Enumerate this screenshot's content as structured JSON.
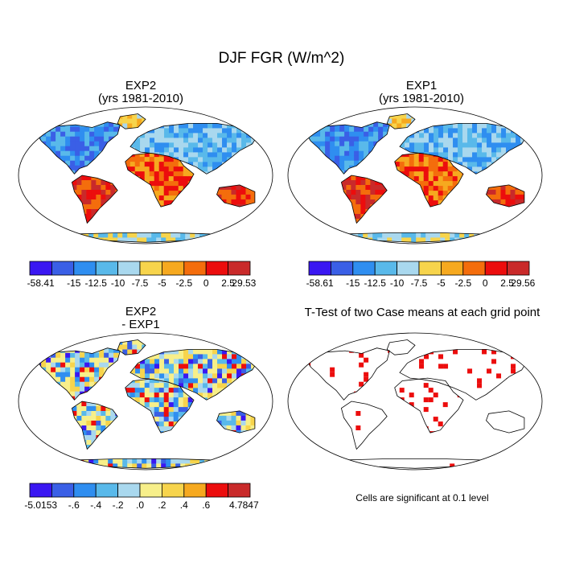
{
  "figure": {
    "title": "DJF FGR (W/m^2)"
  },
  "panels": {
    "exp2": {
      "title_line1": "EXP2",
      "title_line2": "(yrs 1981-2010)",
      "colorbar": {
        "colors": [
          "#3a17f2",
          "#3a5fe6",
          "#2f8ef0",
          "#59b9ea",
          "#a9d8ee",
          "#f7d44c",
          "#f6a91f",
          "#f46d0c",
          "#ec0d0d",
          "#c92a2a"
        ],
        "labels": [
          "-58.41",
          "-15",
          "-12.5",
          "-10",
          "-7.5",
          "-5",
          "-2.5",
          "0",
          "2.5",
          "29.53"
        ]
      }
    },
    "exp1": {
      "title_line1": "EXP1",
      "title_line2": "(yrs 1981-2010)",
      "colorbar": {
        "colors": [
          "#3a17f2",
          "#3a5fe6",
          "#2f8ef0",
          "#59b9ea",
          "#a9d8ee",
          "#f7d44c",
          "#f6a91f",
          "#f46d0c",
          "#ec0d0d",
          "#c92a2a"
        ],
        "labels": [
          "-58.61",
          "-15",
          "-12.5",
          "-10",
          "-7.5",
          "-5",
          "-2.5",
          "0",
          "2.5",
          "29.56"
        ]
      }
    },
    "diff": {
      "title_line1": "EXP2",
      "title_line2": "- EXP1",
      "colorbar": {
        "colors": [
          "#3a17f2",
          "#3a5fe6",
          "#2f8ef0",
          "#59b9ea",
          "#a9d8ee",
          "#f7ef8a",
          "#f7d44c",
          "#f6a91f",
          "#ec0d0d",
          "#c92a2a"
        ],
        "labels": [
          "-5.0153",
          "-.6",
          "-.4",
          "-.2",
          ".0",
          ".2",
          ".4",
          ".6",
          "4.7847"
        ]
      }
    },
    "ttest": {
      "title": "T-Test of two Case means at each grid point",
      "note": "Cells are significant at 0.1 level",
      "significant_color": "#ec0d0d"
    }
  }
}
